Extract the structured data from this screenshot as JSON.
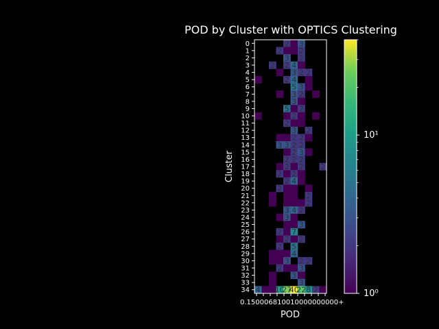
{
  "chart_data": {
    "type": "heatmap",
    "title": "POD by Cluster with OPTICS Clustering",
    "xlabel": "POD",
    "ylabel": "Cluster",
    "x_tick_labels": [
      "0.15",
      "0.60",
      "0.65",
      "0.70",
      "0.75",
      "0.80",
      "0.85",
      "0.90",
      "0.95",
      "1.00",
      "1.05",
      "1.10",
      "1.15+"
    ],
    "x_tick_text": "0.150006810010000000000+",
    "clusters": [
      "0",
      "1",
      "2",
      "3",
      "4",
      "5",
      "6",
      "7",
      "8",
      "9",
      "10",
      "11",
      "12",
      "13",
      "14",
      "15",
      "16",
      "17",
      "18",
      "19",
      "20",
      "21",
      "22",
      "23",
      "24",
      "25",
      "26",
      "27",
      "28",
      "29",
      "30",
      "31",
      "32",
      "33",
      "34"
    ],
    "colorbar": {
      "scale": "log",
      "min": 1,
      "max": 40,
      "ticks": [
        1,
        10
      ],
      "tick_labels": [
        "10⁰",
        "10¹"
      ],
      "colormap": "viridis"
    },
    "cells": [
      [
        0,
        4,
        2
      ],
      [
        0,
        5,
        1
      ],
      [
        0,
        6,
        3
      ],
      [
        1,
        3,
        2
      ],
      [
        1,
        4,
        1
      ],
      [
        1,
        5,
        1
      ],
      [
        1,
        6,
        2
      ],
      [
        2,
        4,
        3
      ],
      [
        2,
        6,
        2
      ],
      [
        3,
        2,
        2
      ],
      [
        3,
        4,
        2
      ],
      [
        3,
        5,
        4
      ],
      [
        3,
        6,
        1
      ],
      [
        4,
        3,
        1
      ],
      [
        4,
        5,
        3
      ],
      [
        4,
        6,
        2
      ],
      [
        4,
        7,
        2
      ],
      [
        5,
        0,
        1
      ],
      [
        5,
        4,
        2
      ],
      [
        5,
        5,
        4
      ],
      [
        5,
        7,
        1
      ],
      [
        6,
        5,
        5
      ],
      [
        6,
        6,
        3
      ],
      [
        6,
        7,
        1
      ],
      [
        7,
        3,
        1
      ],
      [
        7,
        5,
        3
      ],
      [
        7,
        6,
        2
      ],
      [
        7,
        8,
        1
      ],
      [
        8,
        5,
        3
      ],
      [
        8,
        6,
        1
      ],
      [
        9,
        4,
        5
      ],
      [
        9,
        5,
        1
      ],
      [
        9,
        6,
        2
      ],
      [
        10,
        0,
        1
      ],
      [
        10,
        4,
        1
      ],
      [
        10,
        5,
        2
      ],
      [
        10,
        6,
        1
      ],
      [
        10,
        8,
        1
      ],
      [
        11,
        4,
        2
      ],
      [
        11,
        5,
        1
      ],
      [
        11,
        6,
        1
      ],
      [
        12,
        5,
        3
      ],
      [
        12,
        7,
        2
      ],
      [
        13,
        3,
        1
      ],
      [
        13,
        4,
        1
      ],
      [
        13,
        5,
        2
      ],
      [
        13,
        6,
        2
      ],
      [
        13,
        7,
        1
      ],
      [
        14,
        3,
        3
      ],
      [
        14,
        4,
        3
      ],
      [
        14,
        5,
        2
      ],
      [
        14,
        6,
        2
      ],
      [
        15,
        4,
        1
      ],
      [
        15,
        5,
        2
      ],
      [
        15,
        6,
        3
      ],
      [
        15,
        7,
        1
      ],
      [
        16,
        4,
        2
      ],
      [
        16,
        5,
        2
      ],
      [
        16,
        6,
        2
      ],
      [
        17,
        3,
        1
      ],
      [
        17,
        4,
        2
      ],
      [
        17,
        5,
        1
      ],
      [
        17,
        6,
        2
      ],
      [
        17,
        9,
        2
      ],
      [
        18,
        3,
        2
      ],
      [
        18,
        4,
        1
      ],
      [
        18,
        5,
        2
      ],
      [
        18,
        6,
        1
      ],
      [
        19,
        4,
        2
      ],
      [
        19,
        5,
        4
      ],
      [
        19,
        6,
        1
      ],
      [
        20,
        3,
        2
      ],
      [
        20,
        4,
        1
      ],
      [
        20,
        5,
        1
      ],
      [
        20,
        7,
        1
      ],
      [
        21,
        2,
        1
      ],
      [
        21,
        4,
        1
      ],
      [
        21,
        5,
        1
      ],
      [
        21,
        7,
        2
      ],
      [
        22,
        2,
        1
      ],
      [
        22,
        4,
        1
      ],
      [
        22,
        5,
        1
      ],
      [
        22,
        6,
        1
      ],
      [
        22,
        7,
        2
      ],
      [
        23,
        4,
        3
      ],
      [
        23,
        5,
        4
      ],
      [
        23,
        6,
        2
      ],
      [
        24,
        3,
        1
      ],
      [
        24,
        4,
        3
      ],
      [
        24,
        5,
        1
      ],
      [
        25,
        4,
        1
      ],
      [
        25,
        5,
        1
      ],
      [
        25,
        6,
        3
      ],
      [
        26,
        3,
        2
      ],
      [
        26,
        4,
        1
      ],
      [
        26,
        5,
        7
      ],
      [
        27,
        3,
        1
      ],
      [
        27,
        4,
        2
      ],
      [
        27,
        5,
        1
      ],
      [
        27,
        6,
        2
      ],
      [
        28,
        3,
        2
      ],
      [
        28,
        5,
        5
      ],
      [
        29,
        2,
        1
      ],
      [
        29,
        3,
        1
      ],
      [
        29,
        4,
        1
      ],
      [
        29,
        5,
        4
      ],
      [
        30,
        2,
        1
      ],
      [
        30,
        3,
        1
      ],
      [
        30,
        4,
        3
      ],
      [
        30,
        6,
        2
      ],
      [
        30,
        7,
        2
      ],
      [
        31,
        3,
        2
      ],
      [
        31,
        4,
        1
      ],
      [
        31,
        5,
        1
      ],
      [
        31,
        6,
        3
      ],
      [
        32,
        2,
        1
      ],
      [
        32,
        5,
        3
      ],
      [
        32,
        6,
        1
      ],
      [
        33,
        2,
        1
      ],
      [
        33,
        6,
        3
      ],
      [
        34,
        0,
        4
      ],
      [
        34,
        1,
        1
      ],
      [
        34,
        2,
        1
      ],
      [
        34,
        3,
        10
      ],
      [
        34,
        4,
        27
      ],
      [
        34,
        5,
        40
      ],
      [
        34,
        6,
        22
      ],
      [
        34,
        7,
        8
      ],
      [
        34,
        8,
        2
      ],
      [
        34,
        9,
        1
      ]
    ]
  }
}
